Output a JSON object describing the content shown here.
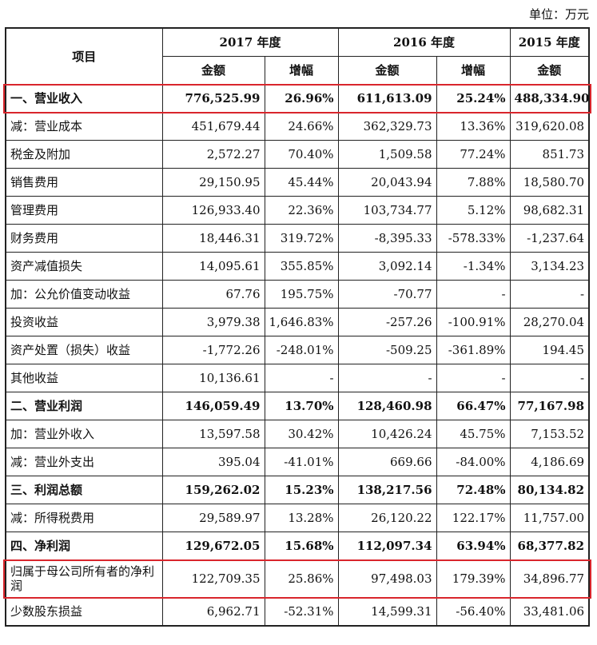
{
  "unit_label": "单位：万元",
  "header": {
    "item": "项目",
    "years": [
      "2017 年度",
      "2016 年度",
      "2015 年度"
    ],
    "amount": "金额",
    "growth": "增幅"
  },
  "rows": [
    {
      "label": "一、营业收入",
      "bold": true,
      "values": [
        "776,525.99",
        "26.96%",
        "611,613.09",
        "25.24%",
        "488,334.90"
      ]
    },
    {
      "label": "减：营业成本",
      "bold": false,
      "values": [
        "451,679.44",
        "24.66%",
        "362,329.73",
        "13.36%",
        "319,620.08"
      ]
    },
    {
      "label": "税金及附加",
      "bold": false,
      "values": [
        "2,572.27",
        "70.40%",
        "1,509.58",
        "77.24%",
        "851.73"
      ]
    },
    {
      "label": "销售费用",
      "bold": false,
      "values": [
        "29,150.95",
        "45.44%",
        "20,043.94",
        "7.88%",
        "18,580.70"
      ]
    },
    {
      "label": "管理费用",
      "bold": false,
      "values": [
        "126,933.40",
        "22.36%",
        "103,734.77",
        "5.12%",
        "98,682.31"
      ]
    },
    {
      "label": "财务费用",
      "bold": false,
      "values": [
        "18,446.31",
        "319.72%",
        "-8,395.33",
        "-578.33%",
        "-1,237.64"
      ]
    },
    {
      "label": "资产减值损失",
      "bold": false,
      "values": [
        "14,095.61",
        "355.85%",
        "3,092.14",
        "-1.34%",
        "3,134.23"
      ]
    },
    {
      "label": "加：公允价值变动收益",
      "bold": false,
      "values": [
        "67.76",
        "195.75%",
        "-70.77",
        "-",
        "-"
      ]
    },
    {
      "label": "投资收益",
      "bold": false,
      "values": [
        "3,979.38",
        "1,646.83%",
        "-257.26",
        "-100.91%",
        "28,270.04"
      ]
    },
    {
      "label": "资产处置（损失）收益",
      "bold": false,
      "values": [
        "-1,772.26",
        "-248.01%",
        "-509.25",
        "-361.89%",
        "194.45"
      ]
    },
    {
      "label": "其他收益",
      "bold": false,
      "values": [
        "10,136.61",
        "-",
        "-",
        "-",
        "-"
      ]
    },
    {
      "label": "二、营业利润",
      "bold": true,
      "values": [
        "146,059.49",
        "13.70%",
        "128,460.98",
        "66.47%",
        "77,167.98"
      ]
    },
    {
      "label": "加：营业外收入",
      "bold": false,
      "values": [
        "13,597.58",
        "30.42%",
        "10,426.24",
        "45.75%",
        "7,153.52"
      ]
    },
    {
      "label": "减：营业外支出",
      "bold": false,
      "values": [
        "395.04",
        "-41.01%",
        "669.66",
        "-84.00%",
        "4,186.69"
      ]
    },
    {
      "label": "三、利润总额",
      "bold": true,
      "values": [
        "159,262.02",
        "15.23%",
        "138,217.56",
        "72.48%",
        "80,134.82"
      ]
    },
    {
      "label": "减：所得税费用",
      "bold": false,
      "values": [
        "29,589.97",
        "13.28%",
        "26,120.22",
        "122.17%",
        "11,757.00"
      ]
    },
    {
      "label": "四、净利润",
      "bold": true,
      "values": [
        "129,672.05",
        "15.68%",
        "112,097.34",
        "63.94%",
        "68,377.82"
      ]
    },
    {
      "label": "归属于母公司所有者的净利润",
      "bold": false,
      "tall": true,
      "values": [
        "122,709.35",
        "25.86%",
        "97,498.03",
        "179.39%",
        "34,896.77"
      ]
    },
    {
      "label": "少数股东损益",
      "bold": false,
      "values": [
        "6,962.71",
        "-52.31%",
        "14,599.31",
        "-56.40%",
        "33,481.06"
      ]
    }
  ],
  "highlight_color": "#d9262c"
}
